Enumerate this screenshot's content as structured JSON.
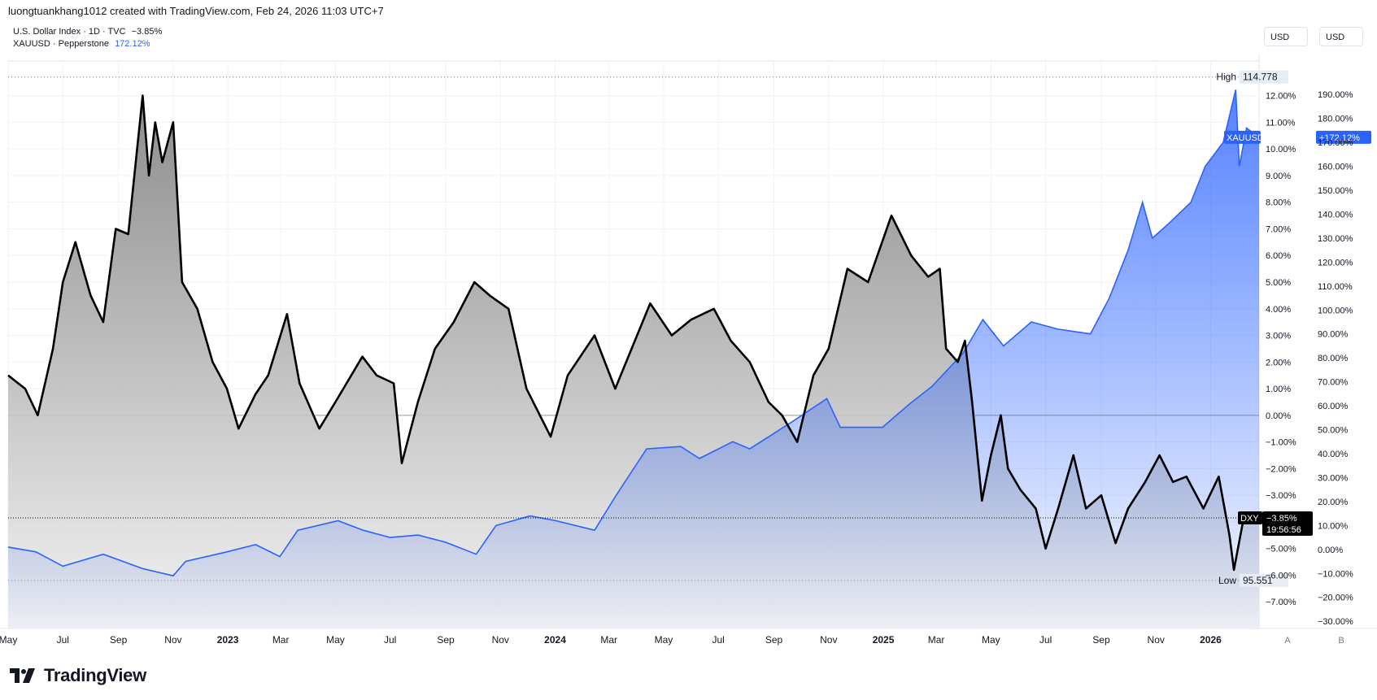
{
  "header": "luongtuankhang1012 created with TradingView.com, Feb 24, 2026 11:03 UTC+7",
  "legend": [
    {
      "symbol": "U.S. Dollar Index · 1D · TVC",
      "change": "−3.85%",
      "color": "#131722"
    },
    {
      "symbol": "XAUUSD · Pepperstone",
      "change": "172.12%",
      "color": "#2962ff"
    }
  ],
  "currency_buttons": [
    "USD",
    "USD"
  ],
  "axis_buttons": [
    "A",
    "B"
  ],
  "brand": "TradingView",
  "colors": {
    "dxy_line": "#000000",
    "xau_line": "#2962ff",
    "grid": "#f0f3fa"
  },
  "chart_data": {
    "type": "line",
    "x_ticks": [
      "May",
      "Jul",
      "Sep",
      "Nov",
      "2023",
      "Mar",
      "May",
      "Jul",
      "Sep",
      "Nov",
      "2024",
      "Mar",
      "May",
      "Jul",
      "Sep",
      "Nov",
      "2025",
      "Mar",
      "May",
      "Jul",
      "Sep",
      "Nov",
      "2026"
    ],
    "x_range": [
      "2022-05-01",
      "2026-02-24"
    ],
    "left_axis": {
      "ylim": [
        -8,
        13.3
      ],
      "ticks": [
        "12.00%",
        "11.00%",
        "10.00%",
        "9.00%",
        "8.00%",
        "7.00%",
        "6.00%",
        "5.00%",
        "4.00%",
        "3.00%",
        "2.00%",
        "1.00%",
        "0.00%",
        "−1.00%",
        "−2.00%",
        "−3.00%",
        "−4.00%",
        "−5.00%",
        "−6.00%",
        "−7.00%"
      ]
    },
    "right_axis": {
      "ylim": [
        -33,
        204
      ],
      "ticks": [
        "190.00%",
        "180.00%",
        "170.00%",
        "160.00%",
        "150.00%",
        "140.00%",
        "130.00%",
        "120.00%",
        "110.00%",
        "100.00%",
        "90.00%",
        "80.00%",
        "70.00%",
        "60.00%",
        "50.00%",
        "40.00%",
        "30.00%",
        "20.00%",
        "10.00%",
        "0.00%",
        "−10.00%",
        "−20.00%",
        "−30.00%"
      ]
    },
    "series": [
      {
        "name": "DXY",
        "axis": "left",
        "points": [
          [
            "2022-05-01",
            1.5
          ],
          [
            "2022-05-20",
            1.0
          ],
          [
            "2022-06-03",
            0.0
          ],
          [
            "2022-06-20",
            2.5
          ],
          [
            "2022-07-01",
            5.0
          ],
          [
            "2022-07-15",
            6.5
          ],
          [
            "2022-08-01",
            4.5
          ],
          [
            "2022-08-15",
            3.5
          ],
          [
            "2022-08-29",
            7.0
          ],
          [
            "2022-09-12",
            6.8
          ],
          [
            "2022-09-28",
            12.0
          ],
          [
            "2022-10-05",
            9.0
          ],
          [
            "2022-10-12",
            11.0
          ],
          [
            "2022-10-20",
            9.5
          ],
          [
            "2022-11-01",
            11.0
          ],
          [
            "2022-11-11",
            5.0
          ],
          [
            "2022-11-28",
            4.0
          ],
          [
            "2022-12-15",
            2.0
          ],
          [
            "2022-12-31",
            1.0
          ],
          [
            "2023-01-13",
            -0.5
          ],
          [
            "2023-02-01",
            0.8
          ],
          [
            "2023-02-15",
            1.5
          ],
          [
            "2023-03-08",
            3.8
          ],
          [
            "2023-03-22",
            1.2
          ],
          [
            "2023-04-13",
            -0.5
          ],
          [
            "2023-05-01",
            0.5
          ],
          [
            "2023-05-31",
            2.2
          ],
          [
            "2023-06-16",
            1.5
          ],
          [
            "2023-07-05",
            1.2
          ],
          [
            "2023-07-14",
            -1.8
          ],
          [
            "2023-08-01",
            0.5
          ],
          [
            "2023-08-20",
            2.5
          ],
          [
            "2023-09-10",
            3.5
          ],
          [
            "2023-10-03",
            5.0
          ],
          [
            "2023-10-20",
            4.5
          ],
          [
            "2023-11-10",
            4.0
          ],
          [
            "2023-11-30",
            1.0
          ],
          [
            "2023-12-27",
            -0.8
          ],
          [
            "2024-01-15",
            1.5
          ],
          [
            "2024-02-14",
            3.0
          ],
          [
            "2024-03-08",
            1.0
          ],
          [
            "2024-04-16",
            4.2
          ],
          [
            "2024-05-10",
            3.0
          ],
          [
            "2024-06-01",
            3.6
          ],
          [
            "2024-06-26",
            4.0
          ],
          [
            "2024-07-15",
            2.8
          ],
          [
            "2024-08-05",
            2.0
          ],
          [
            "2024-08-26",
            0.5
          ],
          [
            "2024-09-10",
            0.0
          ],
          [
            "2024-09-27",
            -1.0
          ],
          [
            "2024-10-15",
            1.5
          ],
          [
            "2024-11-01",
            2.5
          ],
          [
            "2024-11-22",
            5.5
          ],
          [
            "2024-12-15",
            5.0
          ],
          [
            "2025-01-10",
            7.5
          ],
          [
            "2025-02-01",
            6.0
          ],
          [
            "2025-02-20",
            5.2
          ],
          [
            "2025-03-05",
            5.5
          ],
          [
            "2025-03-12",
            2.5
          ],
          [
            "2025-03-25",
            2.0
          ],
          [
            "2025-04-02",
            2.8
          ],
          [
            "2025-04-10",
            0.5
          ],
          [
            "2025-04-21",
            -3.2
          ],
          [
            "2025-05-01",
            -1.5
          ],
          [
            "2025-05-12",
            0.0
          ],
          [
            "2025-05-20",
            -2.0
          ],
          [
            "2025-06-03",
            -2.8
          ],
          [
            "2025-06-20",
            -3.5
          ],
          [
            "2025-07-01",
            -5.0
          ],
          [
            "2025-07-15",
            -3.5
          ],
          [
            "2025-08-01",
            -1.5
          ],
          [
            "2025-08-15",
            -3.5
          ],
          [
            "2025-09-01",
            -3.0
          ],
          [
            "2025-09-17",
            -4.8
          ],
          [
            "2025-10-01",
            -3.5
          ],
          [
            "2025-10-20",
            -2.5
          ],
          [
            "2025-11-05",
            -1.5
          ],
          [
            "2025-11-20",
            -2.5
          ],
          [
            "2025-12-05",
            -2.3
          ],
          [
            "2025-12-24",
            -3.5
          ],
          [
            "2026-01-10",
            -2.3
          ],
          [
            "2026-01-22",
            -4.5
          ],
          [
            "2026-01-27",
            -5.8
          ],
          [
            "2026-02-06",
            -4.0
          ],
          [
            "2026-02-24",
            -3.85
          ]
        ]
      },
      {
        "name": "XAUUSD",
        "axis": "right",
        "points": [
          [
            "2022-05-01",
            1.0
          ],
          [
            "2022-06-01",
            -1.0
          ],
          [
            "2022-07-01",
            -7.0
          ],
          [
            "2022-08-15",
            -2.0
          ],
          [
            "2022-09-28",
            -8.0
          ],
          [
            "2022-11-01",
            -11.0
          ],
          [
            "2022-11-15",
            -5.0
          ],
          [
            "2022-12-31",
            -1.0
          ],
          [
            "2023-02-01",
            2.0
          ],
          [
            "2023-02-28",
            -3.0
          ],
          [
            "2023-03-20",
            8.0
          ],
          [
            "2023-05-04",
            12.0
          ],
          [
            "2023-06-01",
            8.0
          ],
          [
            "2023-07-01",
            5.0
          ],
          [
            "2023-08-01",
            6.0
          ],
          [
            "2023-09-01",
            3.0
          ],
          [
            "2023-10-05",
            -2.0
          ],
          [
            "2023-10-27",
            10.0
          ],
          [
            "2023-12-04",
            14.0
          ],
          [
            "2024-01-02",
            12.0
          ],
          [
            "2024-02-14",
            8.0
          ],
          [
            "2024-03-08",
            22.0
          ],
          [
            "2024-04-12",
            42.0
          ],
          [
            "2024-05-20",
            43.0
          ],
          [
            "2024-06-10",
            38.0
          ],
          [
            "2024-07-17",
            45.0
          ],
          [
            "2024-08-05",
            42.0
          ],
          [
            "2024-09-20",
            53.0
          ],
          [
            "2024-10-30",
            63.0
          ],
          [
            "2024-11-14",
            51.0
          ],
          [
            "2024-12-31",
            51.0
          ],
          [
            "2025-01-31",
            61.0
          ],
          [
            "2025-02-24",
            68.0
          ],
          [
            "2025-03-31",
            82.0
          ],
          [
            "2025-04-22",
            96.0
          ],
          [
            "2025-05-15",
            85.0
          ],
          [
            "2025-06-15",
            95.0
          ],
          [
            "2025-07-15",
            92.0
          ],
          [
            "2025-08-20",
            90.0
          ],
          [
            "2025-09-10",
            105.0
          ],
          [
            "2025-10-01",
            125.0
          ],
          [
            "2025-10-17,",
            145.0
          ],
          [
            "2025-10-28",
            130.0
          ],
          [
            "2025-11-15",
            136.0
          ],
          [
            "2025-12-10",
            145.0
          ],
          [
            "2025-12-26",
            160.0
          ],
          [
            "2026-01-15",
            170.0
          ],
          [
            "2026-01-29",
            192.0
          ],
          [
            "2026-02-02",
            160.0
          ],
          [
            "2026-02-10",
            176.0
          ],
          [
            "2026-02-24",
            172.12
          ]
        ]
      }
    ],
    "annotations": [
      {
        "label": "High",
        "value": "114.778",
        "axis": "left",
        "y": 12.7
      },
      {
        "label": "Low",
        "value": "95.551",
        "axis": "left",
        "y": -6.2
      }
    ],
    "last_value_labels": [
      {
        "series": "XAUUSD",
        "text": "XAUUSD",
        "value": "+172.12%"
      },
      {
        "series": "DXY",
        "text": "DXY",
        "value": "−3.85%",
        "sub": "19:56:56"
      }
    ],
    "grid": true,
    "scale": "percent"
  }
}
